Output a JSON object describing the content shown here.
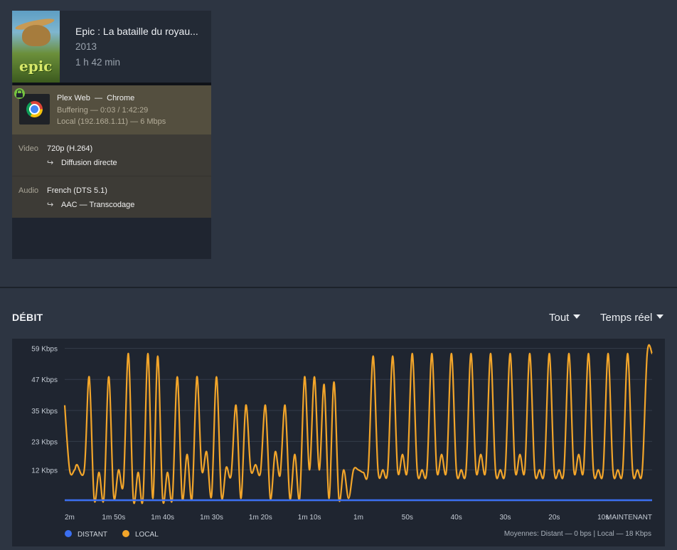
{
  "session": {
    "poster_text": "epic",
    "title": "Epic : La bataille du royau...",
    "year": "2013",
    "duration": "1 h 42 min",
    "progress_fraction": 0.0003,
    "player_name": "Plex Web",
    "player_separator": "—",
    "player_app": "Chrome",
    "status": "Buffering — 0:03 / 1:42:29",
    "network": "Local (192.168.1.11) — 6 Mbps",
    "video": {
      "label": "Video",
      "value": "720p (H.264)",
      "arrow": "↪",
      "decision": "Diffusion directe"
    },
    "audio": {
      "label": "Audio",
      "value": "French (DTS 5.1)",
      "arrow": "↪",
      "decision": "AAC — Transcodage"
    }
  },
  "bandwidth": {
    "title": "DÉBIT",
    "scope_dropdown": "Tout",
    "range_dropdown": "Temps réel",
    "legend": [
      {
        "label": "DISTANT",
        "color": "#3b6ff0"
      },
      {
        "label": "LOCAL",
        "color": "#f2a52a"
      }
    ],
    "averages": "Moyennes: Distant — 0 bps | Local — 18 Kbps"
  },
  "colors": {
    "background": "#2d3542",
    "card": "#1f2530",
    "player_row": "#544f3f",
    "stream_row": "#3d3b36",
    "local_series": "#f2a52a",
    "distant_series": "#3b6ff0",
    "secure_lock": "#76c440"
  },
  "icons": {
    "player": "chrome-icon",
    "secure": "lock-icon",
    "stream_decision": "return-arrow-icon"
  },
  "chart_data": {
    "type": "line",
    "title": "",
    "xlabel": "",
    "ylabel": "",
    "ylim": [
      0,
      60
    ],
    "y_ticks": [
      {
        "value": 59,
        "label": "59 Kbps"
      },
      {
        "value": 47,
        "label": "47 Kbps"
      },
      {
        "value": 35,
        "label": "35 Kbps"
      },
      {
        "value": 23,
        "label": "23 Kbps"
      },
      {
        "value": 12,
        "label": "12 Kbps"
      }
    ],
    "x_ticks": [
      "2m",
      "1m 50s",
      "1m 40s",
      "1m 30s",
      "1m 20s",
      "1m 10s",
      "1m",
      "50s",
      "40s",
      "30s",
      "20s",
      "10s",
      "MAINTENANT"
    ],
    "x_seconds_ago": [
      120,
      110,
      100,
      90,
      80,
      70,
      60,
      50,
      40,
      30,
      20,
      10,
      0
    ],
    "grid": true,
    "legend_position": "bottom-left",
    "series": [
      {
        "name": "DISTANT",
        "x_seconds_ago": [
          120,
          0
        ],
        "values": [
          0,
          0
        ]
      },
      {
        "name": "LOCAL",
        "x_seconds_ago": [
          120,
          119,
          118,
          117.5,
          116,
          115,
          114,
          113,
          112,
          111,
          110,
          109,
          108,
          107,
          106,
          105,
          104,
          103,
          102,
          101,
          100,
          99,
          98,
          97,
          96,
          95,
          94,
          93,
          92,
          91,
          90,
          89,
          88,
          87,
          86,
          85,
          84,
          83,
          82,
          81,
          80,
          79,
          78,
          77,
          76,
          75,
          74,
          73,
          72,
          71,
          70,
          69,
          68,
          67,
          66,
          65,
          64,
          63,
          62,
          61,
          60,
          59,
          58,
          57,
          56,
          55,
          54,
          53,
          52,
          51,
          50,
          49,
          48,
          47,
          46,
          45,
          44,
          43,
          42,
          41,
          40,
          39,
          38,
          37,
          36,
          35,
          34,
          33,
          32,
          31,
          30,
          29,
          28,
          27,
          26,
          25,
          24,
          23,
          22,
          21,
          20,
          19,
          18,
          17,
          16,
          15,
          14,
          13,
          12,
          11,
          10,
          9,
          8,
          7,
          6,
          5,
          4,
          3,
          2,
          1,
          0
        ],
        "values": [
          37,
          12,
          12,
          14,
          12,
          48,
          1,
          11,
          1,
          48,
          2,
          12,
          7,
          57,
          1,
          11,
          1,
          57,
          1,
          56,
          1,
          11,
          1,
          48,
          1,
          18,
          1,
          48,
          12,
          19,
          2,
          48,
          2,
          13,
          10,
          37,
          1,
          37,
          12,
          14,
          11,
          37,
          1,
          19,
          10,
          37,
          1,
          18,
          1,
          48,
          12,
          48,
          12,
          45,
          1,
          46,
          1,
          12,
          1,
          12,
          12,
          11,
          12,
          56,
          12,
          12,
          12,
          56,
          12,
          18,
          12,
          57,
          12,
          12,
          12,
          57,
          12,
          18,
          12,
          57,
          12,
          12,
          12,
          57,
          12,
          18,
          12,
          57,
          12,
          12,
          12,
          57,
          12,
          18,
          12,
          57,
          12,
          12,
          12,
          57,
          12,
          12,
          12,
          57,
          12,
          18,
          12,
          57,
          12,
          12,
          12,
          57,
          12,
          12,
          12,
          57,
          12,
          12,
          12,
          57,
          57
        ]
      }
    ]
  }
}
